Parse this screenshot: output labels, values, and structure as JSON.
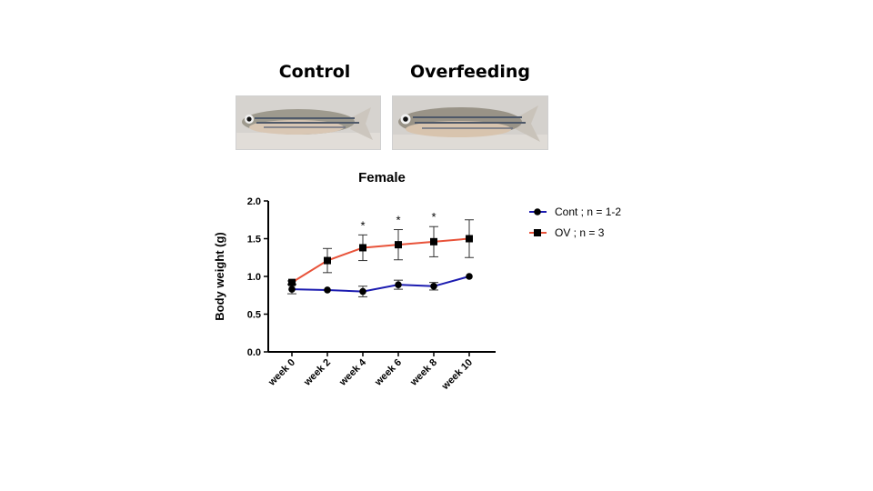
{
  "photos": {
    "control_label": "Control",
    "overfeeding_label": "Overfeeding"
  },
  "chart_data": {
    "type": "line",
    "title": "Female",
    "xlabel": "",
    "ylabel": "Body weight (g)",
    "categories": [
      "week 0",
      "week 2",
      "week 4",
      "week 6",
      "week 8",
      "week 10"
    ],
    "ylim": [
      0,
      2.0
    ],
    "yticks": [
      "0.0",
      "0.5",
      "1.0",
      "1.5",
      "2.0"
    ],
    "legend_position": "right",
    "series": [
      {
        "name": "Cont ; n = 1-2",
        "color": "#1c1cb0",
        "marker": "circle",
        "values": [
          0.83,
          0.82,
          0.8,
          0.89,
          0.87,
          1.0
        ],
        "errors": [
          0.06,
          0.0,
          0.07,
          0.06,
          0.05,
          0.0
        ]
      },
      {
        "name": "OV ; n = 3",
        "color": "#e8533a",
        "marker": "square",
        "values": [
          0.92,
          1.21,
          1.38,
          1.42,
          1.46,
          1.5
        ],
        "errors": [
          0.02,
          0.16,
          0.17,
          0.2,
          0.2,
          0.25
        ]
      }
    ],
    "annotations": [
      {
        "category": "week 4",
        "text": "*"
      },
      {
        "category": "week 6",
        "text": "*"
      },
      {
        "category": "week 8",
        "text": "*"
      }
    ]
  }
}
